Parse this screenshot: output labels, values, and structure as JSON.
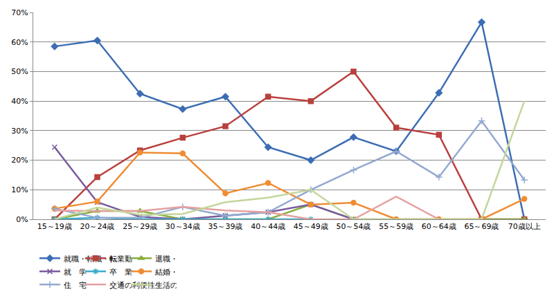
{
  "chart_data": {
    "type": "line",
    "categories": [
      "15～19歳",
      "20～24歳",
      "25～29歳",
      "30～34歳",
      "35～39歳",
      "40～44歳",
      "45～49歳",
      "50～54歳",
      "55～59歳",
      "60～64歳",
      "65～69歳",
      "70歳以上"
    ],
    "series": [
      {
        "name": "就職・転職・転業",
        "color": "#3c6db4",
        "marker": "diamond",
        "values": [
          58.5,
          60.5,
          42.5,
          37.3,
          41.5,
          24.4,
          20.0,
          27.8,
          23.0,
          42.8,
          66.7,
          0
        ]
      },
      {
        "name": "転　勤",
        "color": "#b9403d",
        "marker": "square",
        "values": [
          0,
          14.3,
          23.3,
          27.6,
          31.5,
          41.5,
          40.0,
          50.0,
          31.0,
          28.6,
          0,
          0
        ]
      },
      {
        "name": "退職・廃業",
        "color": "#8aad3e",
        "marker": "triangle",
        "values": [
          0,
          2.8,
          2.8,
          0,
          0,
          0,
          5.0,
          0,
          0,
          0,
          0,
          0
        ]
      },
      {
        "name": "就　学",
        "color": "#7a5a9e",
        "marker": "x",
        "values": [
          24.4,
          5.8,
          0.8,
          0,
          1.2,
          2.4,
          5.0,
          0,
          null,
          null,
          null,
          null
        ]
      },
      {
        "name": "卒　業",
        "color": "#3aaccc",
        "marker": "asterisk",
        "values": [
          0,
          0.5,
          0,
          0,
          0,
          0,
          0,
          null,
          null,
          null,
          null,
          null
        ]
      },
      {
        "name": "結婚・離婚・縁組",
        "color": "#f08c32",
        "marker": "circle",
        "values": [
          3.6,
          6.0,
          22.6,
          22.3,
          8.8,
          12.3,
          5.0,
          5.6,
          0,
          0,
          0,
          6.9
        ]
      },
      {
        "name": "住　宅",
        "color": "#93a9cf",
        "marker": "plus",
        "values": [
          3.6,
          0.5,
          0.5,
          4.2,
          1.2,
          2.4,
          10.0,
          16.7,
          23.0,
          14.3,
          33.3,
          13.3
        ]
      },
      {
        "name": "交通の利便性",
        "color": "#e6a0a0",
        "marker": "none",
        "values": [
          3.0,
          2.8,
          2.8,
          4.2,
          3.0,
          2.4,
          0,
          0,
          7.7,
          0,
          null,
          null
        ]
      },
      {
        "name": "生活の利便性",
        "color": "#c3d69b",
        "marker": "none",
        "values": [
          0,
          4.0,
          1.5,
          1.8,
          5.8,
          7.3,
          10.0,
          0,
          0,
          0,
          0,
          40.0
        ]
      }
    ],
    "ylim": [
      0,
      70
    ],
    "yticks": [
      {
        "value": 0,
        "label": "0%"
      },
      {
        "value": 10,
        "label": "10%"
      },
      {
        "value": 20,
        "label": "20%"
      },
      {
        "value": 30,
        "label": "30%"
      },
      {
        "value": 40,
        "label": "40%"
      },
      {
        "value": 50,
        "label": "50%"
      },
      {
        "value": 60,
        "label": "60%"
      },
      {
        "value": 70,
        "label": "70%"
      }
    ],
    "grid": true,
    "legend": "bottom"
  }
}
